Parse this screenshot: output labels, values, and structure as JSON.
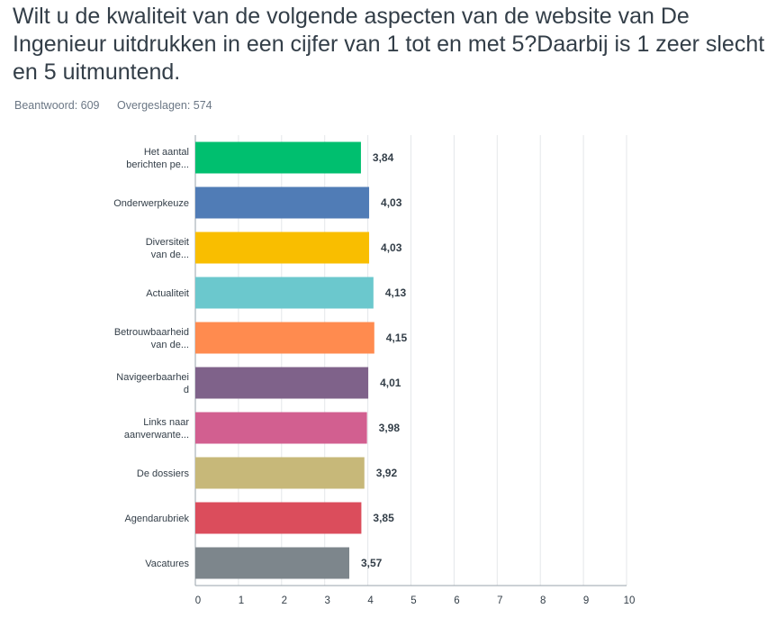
{
  "question": {
    "title": "Wilt u de kwaliteit van de volgende aspecten van de website van De Ingenieur uitdrukken in een cijfer van 1 tot en met 5?Daarbij is 1 zeer slecht en 5 uitmuntend.",
    "answered": "Beantwoord: 609",
    "skipped": "Overgeslagen: 574"
  },
  "chart_data": {
    "type": "bar",
    "orientation": "horizontal",
    "categories": [
      [
        "Het aantal",
        "berichten pe..."
      ],
      [
        "Onderwerpkeuze"
      ],
      [
        "Diversiteit",
        "van de..."
      ],
      [
        "Actualiteit"
      ],
      [
        "Betrouwbaarheid",
        "van de..."
      ],
      [
        "Navigeerbaarhei",
        "d"
      ],
      [
        "Links naar",
        "aanverwante..."
      ],
      [
        "De dossiers"
      ],
      [
        "Agendarubriek"
      ],
      [
        "Vacatures"
      ]
    ],
    "values": [
      3.84,
      4.03,
      4.03,
      4.13,
      4.15,
      4.01,
      3.98,
      3.92,
      3.85,
      3.57
    ],
    "value_labels": [
      "3,84",
      "4,03",
      "4,03",
      "4,13",
      "4,15",
      "4,01",
      "3,98",
      "3,92",
      "3,85",
      "3,57"
    ],
    "colors": [
      "#00bf6f",
      "#507cb6",
      "#f9be00",
      "#6bc8cd",
      "#ff8b4f",
      "#7f628a",
      "#d25f90",
      "#c7b879",
      "#db4d5c",
      "#7d868c"
    ],
    "xticks": [
      "0",
      "1",
      "2",
      "3",
      "4",
      "5",
      "6",
      "7",
      "8",
      "9",
      "10"
    ],
    "xlim": [
      0,
      10
    ],
    "grid": true,
    "title": "",
    "xlabel": "",
    "ylabel": ""
  }
}
